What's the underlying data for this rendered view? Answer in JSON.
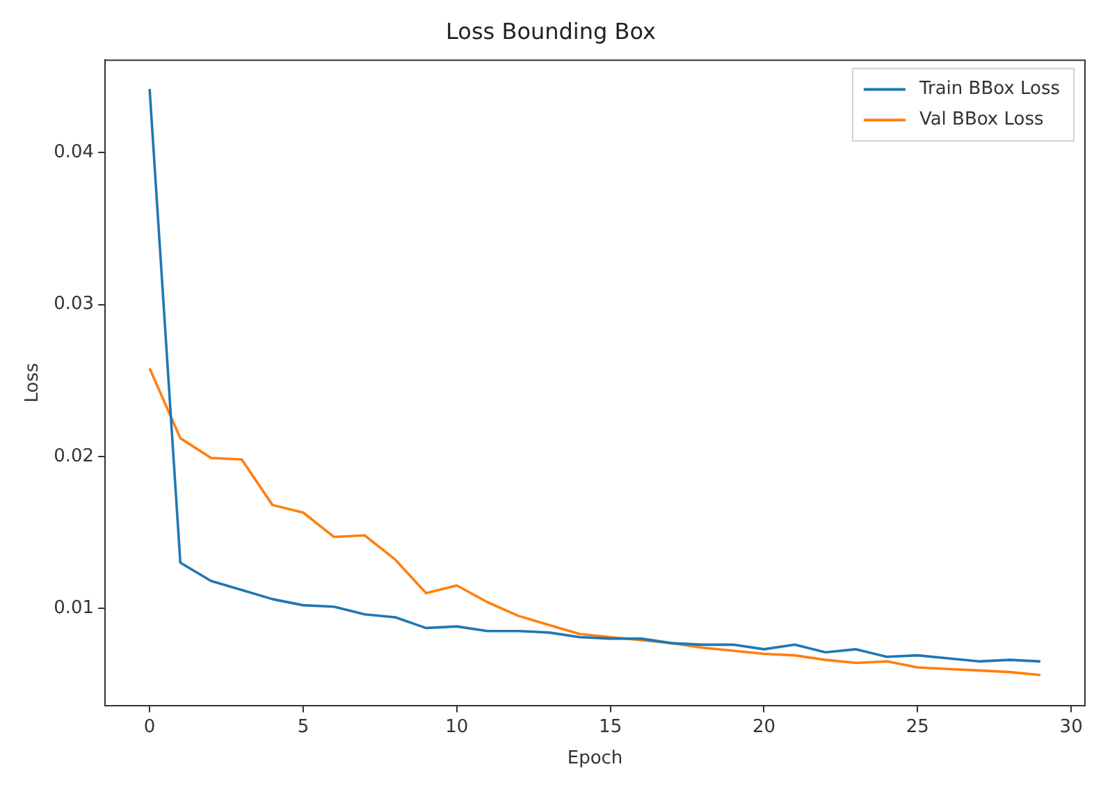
{
  "chart_data": {
    "type": "line",
    "title": "Loss Bounding Box",
    "xlabel": "Epoch",
    "ylabel": "Loss",
    "x": [
      0,
      1,
      2,
      3,
      4,
      5,
      6,
      7,
      8,
      9,
      10,
      11,
      12,
      13,
      14,
      15,
      16,
      17,
      18,
      19,
      20,
      21,
      22,
      23,
      24,
      25,
      26,
      27,
      28,
      29
    ],
    "series": [
      {
        "name": "Train BBox Loss",
        "color": "#1f77b4",
        "values": [
          0.0442,
          0.013,
          0.0118,
          0.0112,
          0.0106,
          0.0102,
          0.0101,
          0.0096,
          0.0094,
          0.0087,
          0.0088,
          0.0085,
          0.0085,
          0.0084,
          0.0081,
          0.008,
          0.008,
          0.0077,
          0.0076,
          0.0076,
          0.0073,
          0.0076,
          0.0071,
          0.0073,
          0.0068,
          0.0069,
          0.0067,
          0.0065,
          0.0066,
          0.0065
        ]
      },
      {
        "name": "Val BBox Loss",
        "color": "#ff7f0e",
        "values": [
          0.0258,
          0.0212,
          0.0199,
          0.0198,
          0.0168,
          0.0163,
          0.0147,
          0.0148,
          0.0132,
          0.011,
          0.0115,
          0.0104,
          0.0095,
          0.0089,
          0.0083,
          0.0081,
          0.0079,
          0.0077,
          0.0074,
          0.0072,
          0.007,
          0.0069,
          0.0066,
          0.0064,
          0.0065,
          0.0061,
          0.006,
          0.0059,
          0.0058,
          0.0056
        ]
      }
    ],
    "xlim": [
      -1.45,
      30.45
    ],
    "xticks": [
      0,
      5,
      10,
      15,
      20,
      25,
      30
    ],
    "ylim": [
      0.0036,
      0.0461
    ],
    "yticks": [
      0.01,
      0.02,
      0.03,
      0.04
    ],
    "grid": false,
    "legend": "top right",
    "marker": "none",
    "line_style": "solid"
  }
}
